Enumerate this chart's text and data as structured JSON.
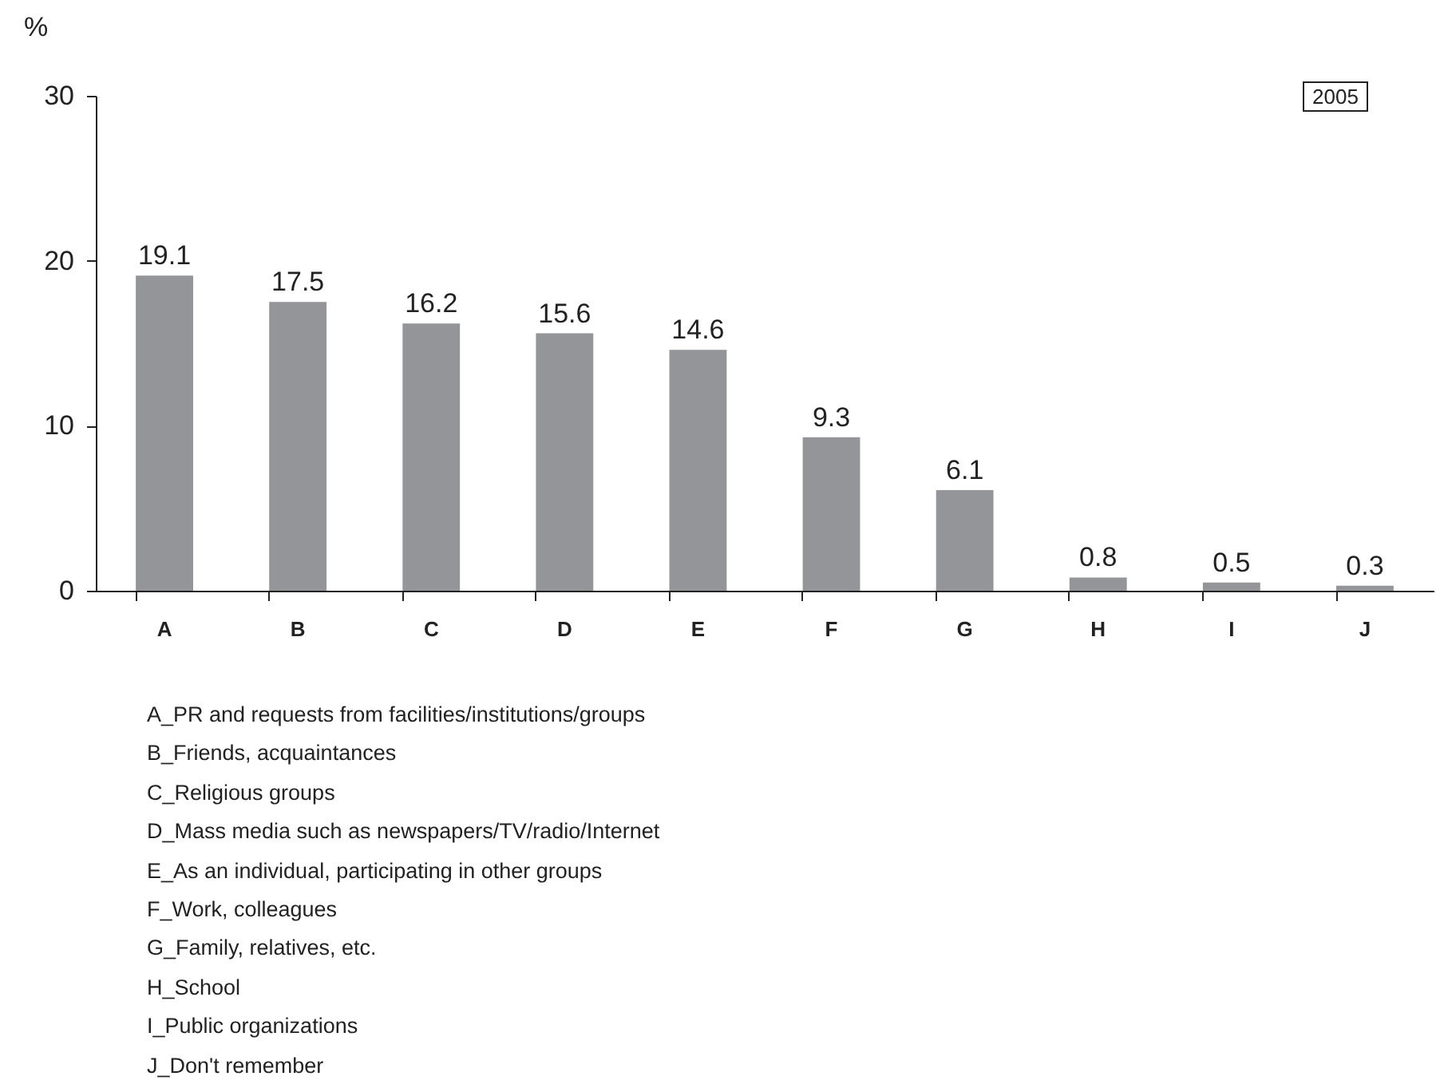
{
  "chart_data": {
    "type": "bar",
    "subtitle": "2005",
    "ylabel": "%",
    "categories": [
      "A",
      "B",
      "C",
      "D",
      "E",
      "F",
      "G",
      "H",
      "I",
      "J"
    ],
    "values": [
      19.1,
      17.5,
      16.2,
      15.6,
      14.6,
      9.3,
      6.1,
      0.8,
      0.5,
      0.3
    ],
    "color": "#939598",
    "ylim": [
      0,
      30
    ],
    "yticks": [
      0,
      10,
      20,
      30
    ],
    "grid": false,
    "data_labels": true,
    "annotations": [
      "A_PR and requests from facilities/institutions/groups",
      "B_Friends, acquaintances",
      "C_Religious groups",
      "D_Mass media such as newspapers/TV/radio/Internet",
      "E_As an individual, participating in other groups",
      "F_Work, colleagues",
      "G_Family, relatives, etc.",
      "H_School",
      "I_Public organizations",
      "J_Don't remember"
    ]
  }
}
